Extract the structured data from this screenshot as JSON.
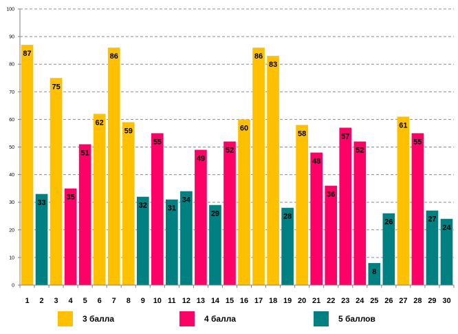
{
  "chart_data": {
    "type": "bar",
    "categories": [
      "1",
      "2",
      "3",
      "4",
      "5",
      "6",
      "7",
      "8",
      "9",
      "10",
      "11",
      "12",
      "13",
      "14",
      "15",
      "16",
      "17",
      "18",
      "19",
      "20",
      "21",
      "22",
      "23",
      "24",
      "25",
      "26",
      "27",
      "28",
      "29",
      "30"
    ],
    "values": [
      87,
      33,
      75,
      35,
      51,
      62,
      86,
      59,
      32,
      55,
      31,
      34,
      49,
      29,
      52,
      60,
      86,
      83,
      28,
      58,
      48,
      36,
      57,
      52,
      8,
      26,
      61,
      55,
      27,
      24
    ],
    "groups": [
      "3",
      "5",
      "3",
      "4",
      "4",
      "3",
      "3",
      "3",
      "5",
      "4",
      "5",
      "5",
      "4",
      "5",
      "4",
      "3",
      "3",
      "3",
      "5",
      "3",
      "4",
      "4",
      "4",
      "4",
      "5",
      "5",
      "3",
      "4",
      "5",
      "5"
    ],
    "yticks": [
      "0",
      "10",
      "20",
      "30",
      "40",
      "50",
      "60",
      "70",
      "80",
      "90",
      "100"
    ],
    "ylim": [
      0,
      100
    ],
    "grid": true,
    "legend_position": "bottom",
    "series": [
      {
        "key": "3",
        "name": "3 балла",
        "color": "#FFC000"
      },
      {
        "key": "4",
        "name": "4 балла",
        "color": "#FF0066"
      },
      {
        "key": "5",
        "name": "5 баллов",
        "color": "#008080"
      }
    ]
  }
}
